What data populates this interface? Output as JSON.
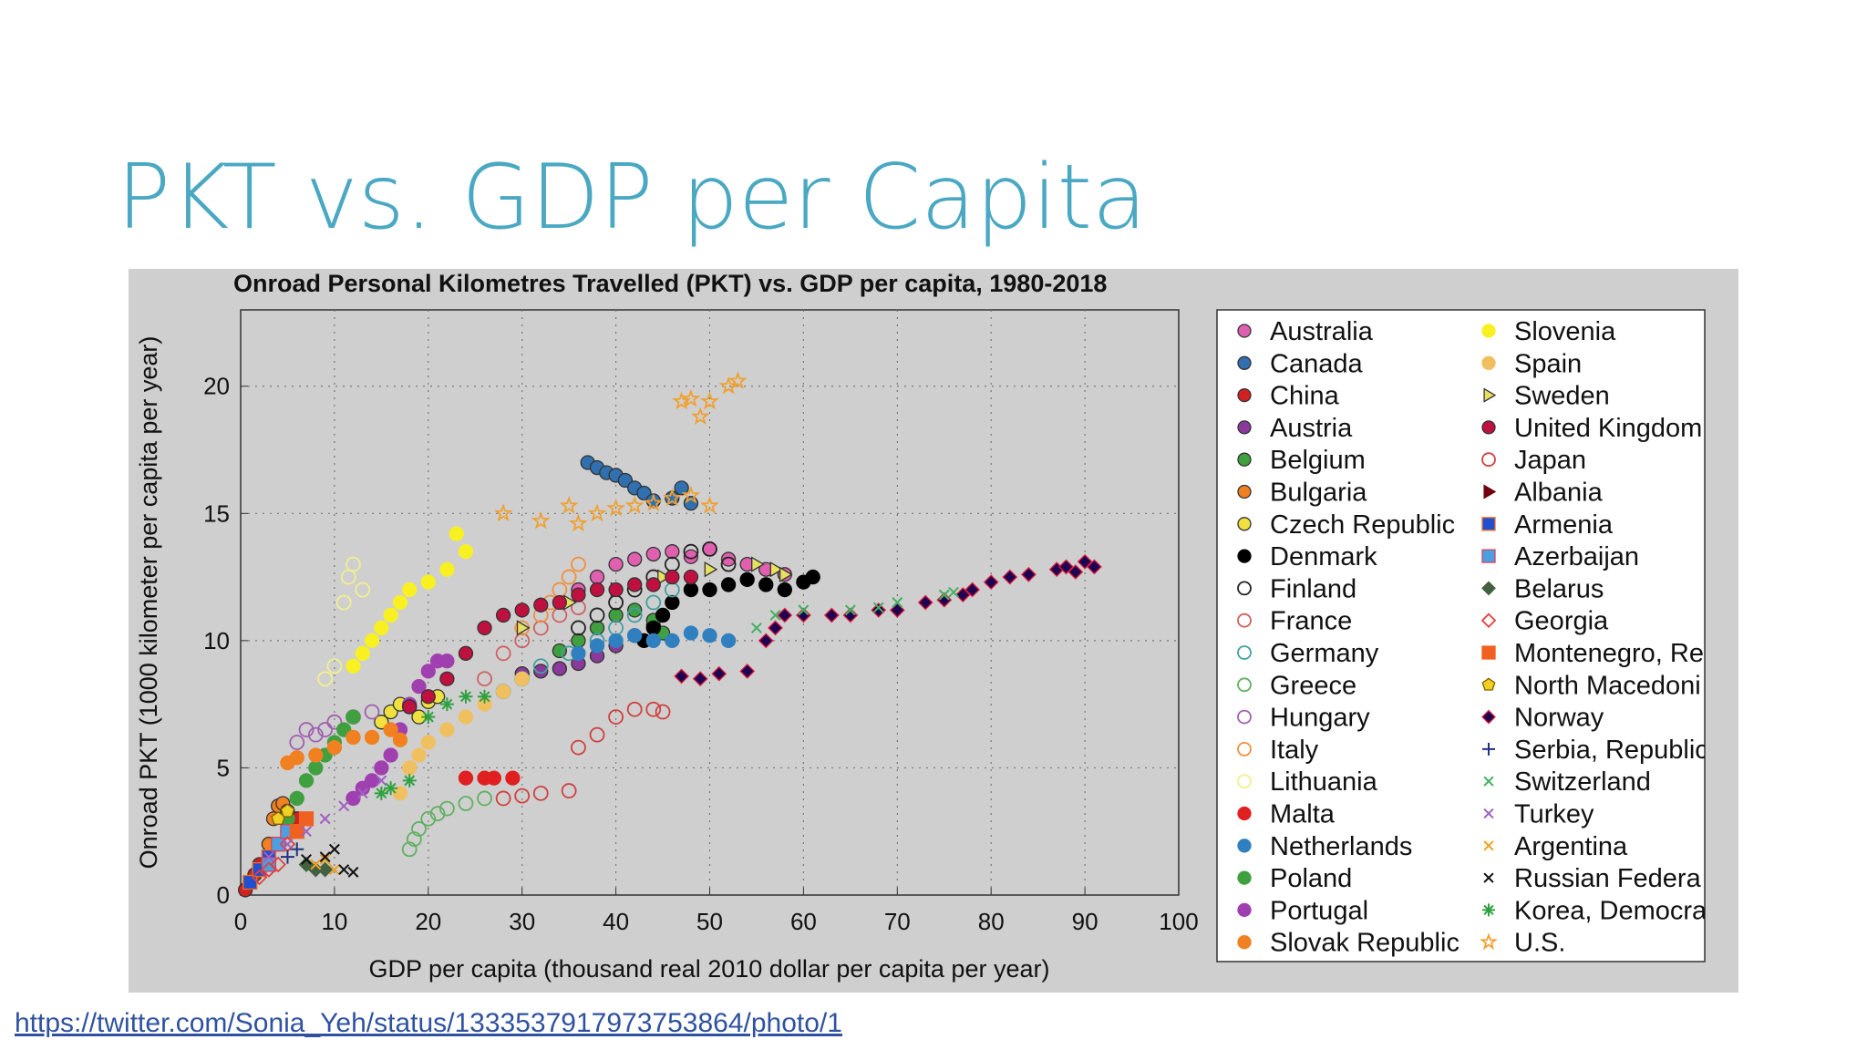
{
  "slide_title": "PKT vs. GDP per Capita",
  "link": "https://twitter.com/Sonia_Yeh/status/1333537917973753864/photo/1",
  "chart_data": {
    "type": "scatter",
    "title": "Onroad Personal Kilometres Travelled (PKT) vs. GDP per capita, 1980-2018",
    "x_label": "GDP per capita (thousand real 2010 dollar per capita per year)",
    "y_label": "Onroad PKT (1000 kilometer per capita per year)",
    "xlim": [
      0,
      100
    ],
    "ylim": [
      0,
      23
    ],
    "xticks": [
      0,
      10,
      20,
      30,
      40,
      50,
      60,
      70,
      80,
      90,
      100
    ],
    "yticks": [
      0,
      5,
      10,
      15,
      20
    ],
    "grid": true,
    "legend": "right",
    "series": [
      {
        "name": "Australia",
        "color": "#e060b0",
        "marker": "circle",
        "filled": true,
        "edge": "#333333",
        "x": [
          36,
          38,
          40,
          42,
          44,
          46,
          48,
          50,
          52,
          54,
          56,
          58
        ],
        "values": [
          12,
          12.5,
          13,
          13.2,
          13.4,
          13.5,
          13.3,
          13.6,
          13.2,
          13,
          12.8,
          12.6
        ]
      },
      {
        "name": "Canada",
        "color": "#3070b0",
        "marker": "circle",
        "filled": true,
        "edge": "#333333",
        "x": [
          37,
          38,
          39,
          40,
          41,
          42,
          43,
          44,
          46,
          47,
          48
        ],
        "values": [
          17,
          16.8,
          16.6,
          16.5,
          16.3,
          16,
          15.8,
          15.5,
          15.6,
          16,
          15.4
        ]
      },
      {
        "name": "China",
        "color": "#d02020",
        "marker": "circle",
        "filled": true,
        "edge": "#333333",
        "x": [
          0.5,
          1,
          1.5,
          2,
          3,
          4,
          5,
          6
        ],
        "values": [
          0.2,
          0.5,
          0.8,
          1.2,
          1.6,
          2,
          2.5,
          3
        ]
      },
      {
        "name": "Austria",
        "color": "#8a3a9a",
        "marker": "circle",
        "filled": true,
        "edge": "#333333",
        "x": [
          30,
          32,
          34,
          36,
          38,
          40,
          42,
          44
        ],
        "values": [
          8.7,
          8.8,
          8.9,
          9.1,
          9.4,
          9.8,
          10.2,
          10.6
        ]
      },
      {
        "name": "Belgium",
        "color": "#40a040",
        "marker": "circle",
        "filled": true,
        "edge": "#333333",
        "x": [
          34,
          36,
          38,
          40,
          42,
          44,
          45
        ],
        "values": [
          9.6,
          10,
          10.5,
          11,
          11.2,
          10.8,
          10.3
        ]
      },
      {
        "name": "Bulgaria",
        "color": "#f08020",
        "marker": "circle",
        "filled": true,
        "edge": "#333333",
        "x": [
          2,
          3,
          3.5,
          4,
          4.5,
          5
        ],
        "values": [
          1,
          2,
          3,
          3.5,
          3.6,
          3.3
        ]
      },
      {
        "name": "Czech Republic",
        "color": "#f0e040",
        "marker": "circle",
        "filled": true,
        "edge": "#333333",
        "x": [
          15,
          16,
          17,
          18,
          19,
          20,
          21
        ],
        "values": [
          6.8,
          7.2,
          7.5,
          7.4,
          7,
          7.6,
          7.8
        ]
      },
      {
        "name": "Denmark",
        "color": "#000000",
        "marker": "circle",
        "filled": true,
        "edge": "#000000",
        "x": [
          43,
          44,
          45,
          46,
          48,
          50,
          52,
          54,
          56,
          58,
          60,
          61
        ],
        "values": [
          10,
          10.5,
          11,
          11.5,
          12,
          12,
          12.2,
          12.4,
          12.2,
          12,
          12.3,
          12.5
        ]
      },
      {
        "name": "Finland",
        "color": "#222222",
        "marker": "circle",
        "filled": false,
        "x": [
          36,
          38,
          40,
          42,
          44,
          46,
          48,
          50,
          52
        ],
        "values": [
          10.5,
          11,
          11.5,
          12,
          12.5,
          13,
          13.5,
          13.6,
          13
        ]
      },
      {
        "name": "France",
        "color": "#d06060",
        "marker": "circle",
        "filled": false,
        "x": [
          26,
          28,
          30,
          32,
          34,
          36
        ],
        "values": [
          8.5,
          9.5,
          10,
          10.5,
          11,
          11.3
        ]
      },
      {
        "name": "Germany",
        "color": "#40a0a0",
        "marker": "circle",
        "filled": false,
        "x": [
          28,
          30,
          32,
          35,
          38,
          40,
          42,
          44,
          46
        ],
        "values": [
          8,
          8.5,
          9,
          9.5,
          10,
          10.5,
          11,
          11.5,
          12
        ]
      },
      {
        "name": "Greece",
        "color": "#60b060",
        "marker": "circle",
        "filled": false,
        "x": [
          18,
          18.5,
          19,
          20,
          21,
          22,
          24,
          26
        ],
        "values": [
          1.8,
          2.2,
          2.6,
          3,
          3.2,
          3.4,
          3.6,
          3.8
        ]
      },
      {
        "name": "Hungary",
        "color": "#a060b0",
        "marker": "circle",
        "filled": false,
        "x": [
          6,
          7,
          8,
          9,
          10,
          12,
          14
        ],
        "values": [
          6,
          6.5,
          6.3,
          6.5,
          6.8,
          7,
          7.2
        ]
      },
      {
        "name": "Italy",
        "color": "#f09040",
        "marker": "circle",
        "filled": false,
        "x": [
          30,
          32,
          33,
          34,
          35,
          36
        ],
        "values": [
          10.5,
          11,
          11.5,
          12,
          12.5,
          13
        ]
      },
      {
        "name": "Lithuania",
        "color": "#f0f090",
        "marker": "circle",
        "filled": false,
        "x": [
          9,
          10,
          11,
          11.5,
          12,
          13
        ],
        "values": [
          8.5,
          9,
          11.5,
          12.5,
          13,
          12
        ]
      },
      {
        "name": "Malta",
        "color": "#e02020",
        "marker": "circle",
        "filled": true,
        "x": [
          24,
          26,
          27,
          29
        ],
        "values": [
          4.6,
          4.6,
          4.6,
          4.6
        ]
      },
      {
        "name": "Netherlands",
        "color": "#3080c0",
        "marker": "circle",
        "filled": true,
        "x": [
          36,
          38,
          40,
          42,
          44,
          46,
          48,
          50,
          52
        ],
        "values": [
          9.5,
          9.8,
          10,
          10.2,
          10,
          10,
          10.3,
          10.2,
          10
        ]
      },
      {
        "name": "Poland",
        "color": "#40a040",
        "marker": "circle",
        "filled": true,
        "x": [
          5,
          6,
          7,
          8,
          9,
          10,
          11,
          12
        ],
        "values": [
          3,
          3.8,
          4.5,
          5,
          5.5,
          6,
          6.5,
          7
        ]
      },
      {
        "name": "Portugal",
        "color": "#a040b0",
        "marker": "circle",
        "filled": true,
        "x": [
          12,
          13,
          14,
          15,
          16,
          17,
          18,
          19,
          20,
          21,
          22
        ],
        "values": [
          3.8,
          4.2,
          4.5,
          5,
          5.5,
          6.5,
          7.5,
          8.2,
          8.8,
          9.2,
          9.2
        ]
      },
      {
        "name": "Slovak Republic",
        "color": "#f08020",
        "marker": "circle",
        "filled": true,
        "x": [
          5,
          6,
          8,
          10,
          12,
          14,
          16,
          17
        ],
        "values": [
          5.2,
          5.4,
          5.5,
          5.8,
          6.2,
          6.2,
          6.5,
          6.1
        ]
      },
      {
        "name": "Slovenia",
        "color": "#f8f020",
        "marker": "circle",
        "filled": true,
        "x": [
          12,
          13,
          14,
          15,
          16,
          17,
          18,
          20,
          22,
          24,
          23
        ],
        "values": [
          9,
          9.5,
          10,
          10.5,
          11,
          11.5,
          12,
          12.3,
          12.8,
          13.5,
          14.2
        ]
      },
      {
        "name": "Spain",
        "color": "#f0c060",
        "marker": "circle",
        "filled": true,
        "x": [
          17,
          18,
          19,
          20,
          22,
          24,
          26,
          28,
          30
        ],
        "values": [
          4,
          5,
          5.5,
          6,
          6.5,
          7,
          7.5,
          8,
          8.5
        ]
      },
      {
        "name": "Sweden",
        "color": "#e8e060",
        "marker": "triangle",
        "filled": true,
        "edge": "#333333",
        "x": [
          30,
          35,
          40,
          45,
          50,
          55,
          57,
          58
        ],
        "values": [
          10.5,
          11.5,
          12,
          12.5,
          12.8,
          13,
          12.8,
          12.6
        ]
      },
      {
        "name": "United Kingdom",
        "color": "#c01040",
        "marker": "circle",
        "filled": true,
        "edge": "#333333",
        "x": [
          18,
          20,
          22,
          24,
          26,
          28,
          30,
          32,
          34,
          36,
          38,
          40,
          42,
          44,
          46,
          48
        ],
        "values": [
          7.4,
          7.8,
          8.5,
          9.5,
          10.5,
          11,
          11.2,
          11.4,
          11.5,
          11.8,
          12,
          12,
          12.2,
          12.2,
          12.5,
          12.5
        ]
      },
      {
        "name": "Japan",
        "color": "#d04040",
        "marker": "circle",
        "filled": false,
        "x": [
          28,
          30,
          32,
          35,
          36,
          38,
          40,
          42,
          44,
          45
        ],
        "values": [
          3.8,
          3.9,
          4,
          4.1,
          5.8,
          6.3,
          7,
          7.3,
          7.3,
          7.2
        ]
      },
      {
        "name": "Albania",
        "color": "#700010",
        "marker": "triangle",
        "filled": true,
        "x": [
          2,
          3,
          4
        ],
        "values": [
          1,
          1.5,
          2
        ]
      },
      {
        "name": "Armenia",
        "color": "#2050d0",
        "marker": "square",
        "filled": true,
        "edge": "#f07020",
        "x": [
          1,
          2,
          3
        ],
        "values": [
          0.5,
          1,
          1.5
        ]
      },
      {
        "name": "Azerbaijan",
        "color": "#4aa0e0",
        "marker": "square",
        "filled": true,
        "edge": "#e04060",
        "x": [
          3,
          4,
          5
        ],
        "values": [
          1.2,
          2,
          2.5
        ]
      },
      {
        "name": "Belarus",
        "color": "#406040",
        "marker": "diamond",
        "filled": true,
        "x": [
          7,
          8,
          9
        ],
        "values": [
          1.2,
          1,
          1
        ]
      },
      {
        "name": "Georgia",
        "color": "#e04040",
        "marker": "diamond",
        "filled": false,
        "x": [
          2,
          3,
          4,
          5
        ],
        "values": [
          0.7,
          1,
          1.2,
          2
        ]
      },
      {
        "name": "Montenegro, Re",
        "color": "#f06020",
        "marker": "square",
        "filled": true,
        "x": [
          6,
          7
        ],
        "values": [
          2.5,
          3
        ]
      },
      {
        "name": "North Macedoni",
        "color": "#f0d020",
        "marker": "pentagon",
        "filled": true,
        "edge": "#806000",
        "x": [
          4,
          5
        ],
        "values": [
          3,
          3.3
        ]
      },
      {
        "name": "Norway",
        "color": "#200050",
        "marker": "diamond",
        "filled": true,
        "edge": "#e02040",
        "x": [
          47,
          49,
          51,
          54,
          56,
          57,
          58,
          60,
          63,
          65,
          68,
          70,
          73,
          75,
          77,
          78,
          80,
          82,
          84,
          87,
          88,
          89,
          90,
          91
        ],
        "values": [
          8.6,
          8.5,
          8.7,
          8.8,
          10,
          10.5,
          11,
          11,
          11,
          11,
          11.2,
          11.2,
          11.5,
          11.6,
          11.8,
          12,
          12.3,
          12.5,
          12.6,
          12.8,
          12.9,
          12.7,
          13.1,
          12.9
        ]
      },
      {
        "name": "Serbia, Republic",
        "color": "#203080",
        "marker": "plus",
        "filled": false,
        "x": [
          5,
          6
        ],
        "values": [
          1.5,
          1.8
        ]
      },
      {
        "name": "Switzerland",
        "color": "#40b060",
        "marker": "x",
        "filled": false,
        "x": [
          55,
          57,
          60,
          65,
          68,
          70,
          75,
          76
        ],
        "values": [
          10.5,
          11,
          11.2,
          11.2,
          11.3,
          11.5,
          11.8,
          11.9
        ]
      },
      {
        "name": "Turkey",
        "color": "#a060c0",
        "marker": "x",
        "filled": false,
        "x": [
          3,
          5,
          7,
          9,
          11,
          13,
          15
        ],
        "values": [
          1.5,
          2,
          2.5,
          3,
          3.5,
          4,
          4.5
        ]
      },
      {
        "name": "Argentina",
        "color": "#f0a020",
        "marker": "x",
        "filled": false,
        "x": [
          8,
          9,
          10
        ],
        "values": [
          1.2,
          1.4,
          1
        ]
      },
      {
        "name": "Russian Federa",
        "color": "#111111",
        "marker": "x",
        "filled": false,
        "x": [
          7,
          9,
          10,
          11,
          12
        ],
        "values": [
          1.4,
          1.5,
          1.8,
          1,
          0.9
        ]
      },
      {
        "name": "Korea, Democra",
        "color": "#30a040",
        "marker": "asterisk",
        "filled": false,
        "x": [
          15,
          16,
          18,
          20,
          22,
          24,
          26
        ],
        "values": [
          4,
          4.2,
          4.5,
          7,
          7.5,
          7.8,
          7.8
        ]
      },
      {
        "name": "U.S.",
        "color": "#f0a030",
        "marker": "star",
        "filled": false,
        "x": [
          28,
          32,
          35,
          36,
          38,
          40,
          42,
          44,
          46,
          48,
          50,
          47,
          48,
          50,
          52,
          53,
          49
        ],
        "values": [
          15,
          14.7,
          15.3,
          14.6,
          15,
          15.2,
          15.3,
          15.4,
          15.6,
          15.7,
          15.3,
          19.4,
          19.5,
          19.4,
          20,
          20.2,
          18.8
        ]
      }
    ]
  }
}
